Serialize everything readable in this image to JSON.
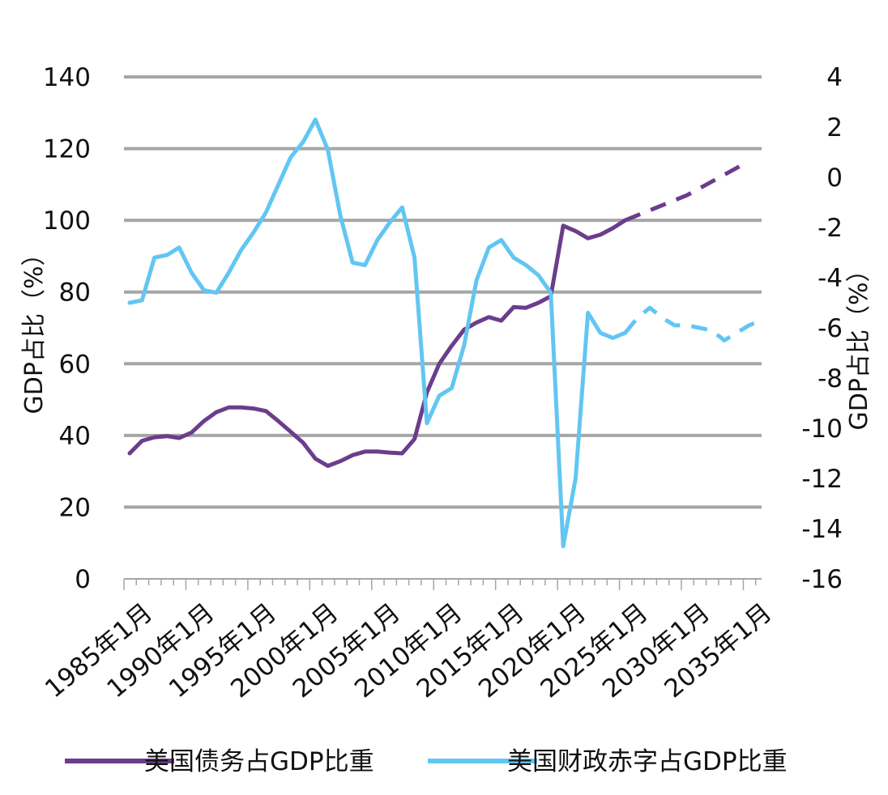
{
  "chart_data": {
    "type": "line",
    "x_categories": [
      "1985年1月",
      "1990年1月",
      "1995年1月",
      "2000年1月",
      "2005年1月",
      "2010年1月",
      "2015年1月",
      "2020年1月",
      "2025年1月",
      "2030年1月",
      "2035年1月"
    ],
    "x_range": [
      1985,
      2036
    ],
    "y_left": {
      "label": "GDP占比（%）",
      "range": [
        0,
        140
      ],
      "ticks": [
        "0",
        "20",
        "40",
        "60",
        "80",
        "100",
        "120",
        "140"
      ]
    },
    "y_right": {
      "label": "GDP占比（%）",
      "range": [
        -16,
        4
      ],
      "ticks": [
        "-16",
        "-14",
        "-12",
        "-10",
        "-8",
        "-6",
        "-4",
        "-2",
        "0",
        "2",
        "4"
      ]
    },
    "grid": true,
    "legend_position": "bottom",
    "series": [
      {
        "name": "美国债务占GDP比重",
        "axis": "left",
        "color": "#6b3d8c",
        "actual": [
          [
            1985,
            35
          ],
          [
            1986,
            38.5
          ],
          [
            1987,
            39.5
          ],
          [
            1988,
            39.8
          ],
          [
            1989,
            39.3
          ],
          [
            1990,
            40.8
          ],
          [
            1991,
            44
          ],
          [
            1992,
            46.5
          ],
          [
            1993,
            47.8
          ],
          [
            1994,
            47.8
          ],
          [
            1995,
            47.5
          ],
          [
            1996,
            46.8
          ],
          [
            1997,
            44
          ],
          [
            1998,
            41
          ],
          [
            1999,
            38
          ],
          [
            2000,
            33.5
          ],
          [
            2001,
            31.5
          ],
          [
            2002,
            32.8
          ],
          [
            2003,
            34.5
          ],
          [
            2004,
            35.5
          ],
          [
            2005,
            35.5
          ],
          [
            2006,
            35.2
          ],
          [
            2007,
            35
          ],
          [
            2008,
            39
          ],
          [
            2009,
            52
          ],
          [
            2010,
            60
          ],
          [
            2011,
            65
          ],
          [
            2012,
            69.5
          ],
          [
            2013,
            71.5
          ],
          [
            2014,
            73
          ],
          [
            2015,
            72
          ],
          [
            2016,
            75.8
          ],
          [
            2017,
            75.6
          ],
          [
            2018,
            77
          ],
          [
            2019,
            78.8
          ],
          [
            2020,
            98.5
          ],
          [
            2021,
            97
          ],
          [
            2022,
            95
          ],
          [
            2023,
            96
          ],
          [
            2024,
            97.8
          ],
          [
            2025,
            100
          ]
        ],
        "projection": [
          [
            2025,
            100
          ],
          [
            2030,
            107
          ],
          [
            2035,
            116.5
          ]
        ]
      },
      {
        "name": "美国财政赤字占GDP比重",
        "axis": "right",
        "color": "#62c6f2",
        "actual": [
          [
            1985,
            -5
          ],
          [
            1986,
            -4.9
          ],
          [
            1987,
            -3.2
          ],
          [
            1988,
            -3.1
          ],
          [
            1989,
            -2.8
          ],
          [
            1990,
            -3.8
          ],
          [
            1991,
            -4.5
          ],
          [
            1992,
            -4.6
          ],
          [
            1993,
            -3.8
          ],
          [
            1994,
            -2.9
          ],
          [
            1995,
            -2.2
          ],
          [
            1996,
            -1.4
          ],
          [
            1997,
            -0.3
          ],
          [
            1998,
            0.8
          ],
          [
            1999,
            1.4
          ],
          [
            2000,
            2.3
          ],
          [
            2001,
            1.1
          ],
          [
            2002,
            -1.5
          ],
          [
            2003,
            -3.4
          ],
          [
            2004,
            -3.5
          ],
          [
            2005,
            -2.5
          ],
          [
            2006,
            -1.8
          ],
          [
            2007,
            -1.2
          ],
          [
            2008,
            -3.2
          ],
          [
            2009,
            -9.8
          ],
          [
            2010,
            -8.7
          ],
          [
            2011,
            -8.4
          ],
          [
            2012,
            -6.7
          ],
          [
            2013,
            -4.1
          ],
          [
            2014,
            -2.8
          ],
          [
            2015,
            -2.5
          ],
          [
            2016,
            -3.2
          ],
          [
            2017,
            -3.5
          ],
          [
            2018,
            -3.9
          ],
          [
            2019,
            -4.6
          ],
          [
            2020,
            -14.7
          ],
          [
            2021,
            -12
          ],
          [
            2022,
            -5.4
          ],
          [
            2023,
            -6.2
          ],
          [
            2024,
            -6.4
          ],
          [
            2025,
            -6.2
          ]
        ],
        "projection": [
          [
            2025,
            -6.2
          ],
          [
            2026,
            -5.6
          ],
          [
            2027,
            -5.2
          ],
          [
            2028,
            -5.6
          ],
          [
            2029,
            -5.9
          ],
          [
            2030,
            -5.9
          ],
          [
            2031,
            -6
          ],
          [
            2032,
            -6.1
          ],
          [
            2033,
            -6.5
          ],
          [
            2034,
            -6.2
          ],
          [
            2035,
            -5.9
          ],
          [
            2036,
            -5.7
          ]
        ]
      }
    ]
  }
}
